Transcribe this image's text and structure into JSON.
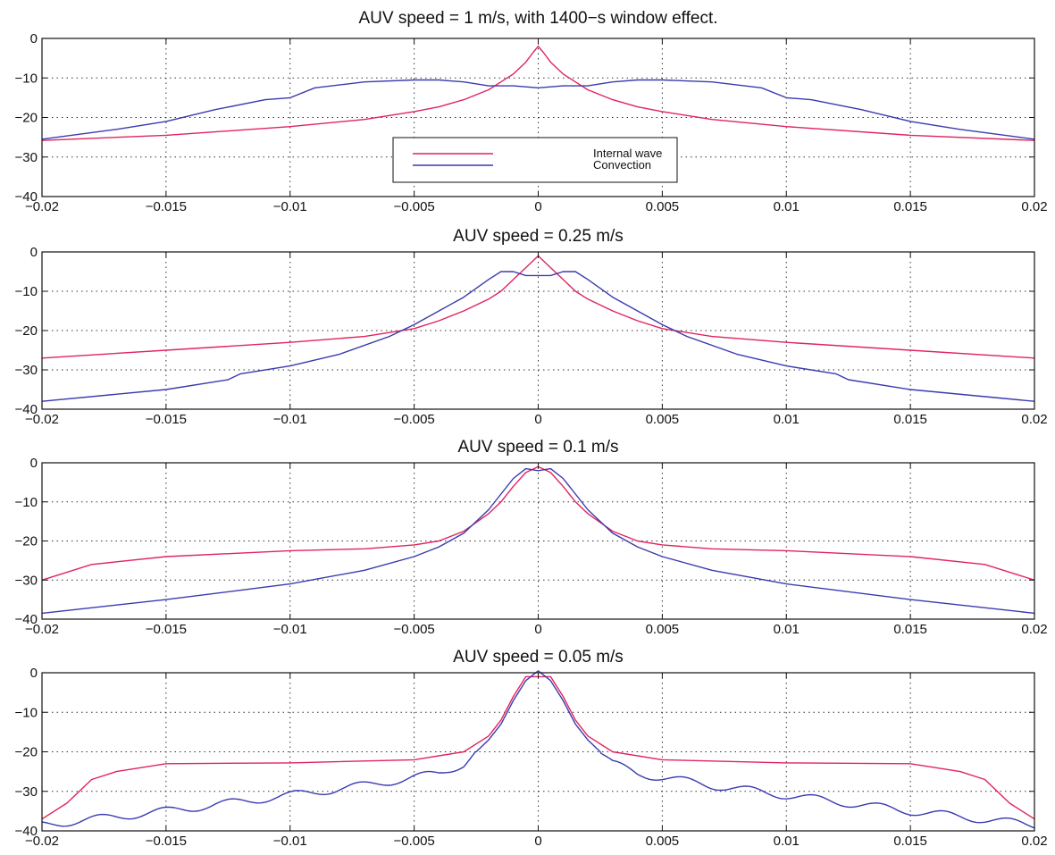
{
  "chart_data": [
    {
      "type": "line",
      "title": "AUV speed = 1 m/s, with 1400−s window effect.",
      "xlim": [
        -0.02,
        0.02
      ],
      "ylim": [
        -40,
        0
      ],
      "xticks": [
        "−0.02",
        "−0.015",
        "−0.01",
        "−0.005",
        "0",
        "0.005",
        "0.01",
        "0.015",
        "0.02"
      ],
      "yticks": [
        "0",
        "−10",
        "−20",
        "−30",
        "−40"
      ],
      "grid": true,
      "legend": {
        "placement": "center-bottom",
        "entries": [
          "Internal wave",
          "Convection"
        ]
      },
      "series": [
        {
          "name": "Internal wave",
          "color": "#e0245e",
          "points": [
            [
              -0.02,
              -25.8
            ],
            [
              -0.015,
              -24.5
            ],
            [
              -0.01,
              -22.3
            ],
            [
              -0.007,
              -20.5
            ],
            [
              -0.005,
              -18.5
            ],
            [
              -0.004,
              -17.3
            ],
            [
              -0.003,
              -15.5
            ],
            [
              -0.002,
              -13
            ],
            [
              -0.0015,
              -11
            ],
            [
              -0.001,
              -9
            ],
            [
              -0.0005,
              -6
            ],
            [
              -0.0002,
              -3.5
            ],
            [
              0,
              -2
            ],
            [
              0.0002,
              -3.5
            ],
            [
              0.0005,
              -6
            ],
            [
              0.001,
              -9
            ],
            [
              0.0015,
              -11
            ],
            [
              0.002,
              -13
            ],
            [
              0.003,
              -15.5
            ],
            [
              0.004,
              -17.3
            ],
            [
              0.005,
              -18.5
            ],
            [
              0.007,
              -20.5
            ],
            [
              0.01,
              -22.3
            ],
            [
              0.015,
              -24.5
            ],
            [
              0.02,
              -25.8
            ]
          ]
        },
        {
          "name": "Convection",
          "color": "#3a3ab0",
          "points": [
            [
              -0.02,
              -25.5
            ],
            [
              -0.017,
              -23
            ],
            [
              -0.015,
              -21
            ],
            [
              -0.013,
              -18
            ],
            [
              -0.011,
              -15.5
            ],
            [
              -0.01,
              -15
            ],
            [
              -0.009,
              -12.5
            ],
            [
              -0.007,
              -11
            ],
            [
              -0.005,
              -10.5
            ],
            [
              -0.004,
              -10.5
            ],
            [
              -0.003,
              -11
            ],
            [
              -0.002,
              -12
            ],
            [
              -0.001,
              -12
            ],
            [
              0,
              -12.5
            ],
            [
              0.001,
              -12
            ],
            [
              0.002,
              -12
            ],
            [
              0.003,
              -11
            ],
            [
              0.004,
              -10.5
            ],
            [
              0.005,
              -10.5
            ],
            [
              0.007,
              -11
            ],
            [
              0.009,
              -12.5
            ],
            [
              0.01,
              -15
            ],
            [
              0.011,
              -15.5
            ],
            [
              0.013,
              -18
            ],
            [
              0.015,
              -21
            ],
            [
              0.017,
              -23
            ],
            [
              0.02,
              -25.5
            ]
          ]
        }
      ]
    },
    {
      "type": "line",
      "title": "AUV speed = 0.25 m/s",
      "xlim": [
        -0.02,
        0.02
      ],
      "ylim": [
        -40,
        0
      ],
      "xticks": [
        "−0.02",
        "−0.015",
        "−0.01",
        "−0.005",
        "0",
        "0.005",
        "0.01",
        "0.015",
        "0.02"
      ],
      "yticks": [
        "0",
        "−10",
        "−20",
        "−30",
        "−40"
      ],
      "grid": true,
      "series": [
        {
          "name": "Internal wave",
          "color": "#e0245e",
          "points": [
            [
              -0.02,
              -27
            ],
            [
              -0.015,
              -25
            ],
            [
              -0.01,
              -23
            ],
            [
              -0.007,
              -21.5
            ],
            [
              -0.005,
              -19.5
            ],
            [
              -0.004,
              -17.5
            ],
            [
              -0.003,
              -15
            ],
            [
              -0.002,
              -12
            ],
            [
              -0.0015,
              -10
            ],
            [
              -0.001,
              -7
            ],
            [
              -0.0005,
              -4
            ],
            [
              0,
              -1
            ],
            [
              0.0005,
              -4
            ],
            [
              0.001,
              -7
            ],
            [
              0.0015,
              -10
            ],
            [
              0.002,
              -12
            ],
            [
              0.003,
              -15
            ],
            [
              0.004,
              -17.5
            ],
            [
              0.005,
              -19.5
            ],
            [
              0.007,
              -21.5
            ],
            [
              0.01,
              -23
            ],
            [
              0.015,
              -25
            ],
            [
              0.02,
              -27
            ]
          ]
        },
        {
          "name": "Convection",
          "color": "#3a3ab0",
          "points": [
            [
              -0.02,
              -38
            ],
            [
              -0.015,
              -35
            ],
            [
              -0.0125,
              -32.5
            ],
            [
              -0.012,
              -31
            ],
            [
              -0.01,
              -29
            ],
            [
              -0.008,
              -26
            ],
            [
              -0.006,
              -21.5
            ],
            [
              -0.005,
              -18.5
            ],
            [
              -0.004,
              -15
            ],
            [
              -0.003,
              -11.5
            ],
            [
              -0.002,
              -7
            ],
            [
              -0.0015,
              -5
            ],
            [
              -0.001,
              -5
            ],
            [
              -0.0005,
              -6
            ],
            [
              0,
              -6
            ],
            [
              0.0005,
              -6
            ],
            [
              0.001,
              -5
            ],
            [
              0.0015,
              -5
            ],
            [
              0.002,
              -7
            ],
            [
              0.003,
              -11.5
            ],
            [
              0.004,
              -15
            ],
            [
              0.005,
              -18.5
            ],
            [
              0.006,
              -21.5
            ],
            [
              0.008,
              -26
            ],
            [
              0.01,
              -29
            ],
            [
              0.012,
              -31
            ],
            [
              0.0125,
              -32.5
            ],
            [
              0.015,
              -35
            ],
            [
              0.02,
              -38
            ]
          ]
        }
      ]
    },
    {
      "type": "line",
      "title": "AUV speed = 0.1 m/s",
      "xlim": [
        -0.02,
        0.02
      ],
      "ylim": [
        -40,
        0
      ],
      "xticks": [
        "−0.02",
        "−0.015",
        "−0.01",
        "−0.005",
        "0",
        "0.005",
        "0.01",
        "0.015",
        "0.02"
      ],
      "yticks": [
        "0",
        "−10",
        "−20",
        "−30",
        "−40"
      ],
      "grid": true,
      "series": [
        {
          "name": "Internal wave",
          "color": "#e0245e",
          "points": [
            [
              -0.02,
              -30
            ],
            [
              -0.018,
              -26
            ],
            [
              -0.015,
              -24
            ],
            [
              -0.01,
              -22.5
            ],
            [
              -0.007,
              -22
            ],
            [
              -0.005,
              -21
            ],
            [
              -0.004,
              -20
            ],
            [
              -0.003,
              -17.5
            ],
            [
              -0.002,
              -13
            ],
            [
              -0.0015,
              -10
            ],
            [
              -0.001,
              -6
            ],
            [
              -0.0005,
              -2.5
            ],
            [
              0,
              -1
            ],
            [
              0.0005,
              -2.5
            ],
            [
              0.001,
              -6
            ],
            [
              0.0015,
              -10
            ],
            [
              0.002,
              -13
            ],
            [
              0.003,
              -17.5
            ],
            [
              0.004,
              -20
            ],
            [
              0.005,
              -21
            ],
            [
              0.007,
              -22
            ],
            [
              0.01,
              -22.5
            ],
            [
              0.015,
              -24
            ],
            [
              0.018,
              -26
            ],
            [
              0.02,
              -30
            ]
          ]
        },
        {
          "name": "Convection",
          "color": "#3a3ab0",
          "points": [
            [
              -0.02,
              -38.5
            ],
            [
              -0.015,
              -35
            ],
            [
              -0.01,
              -31
            ],
            [
              -0.007,
              -27.5
            ],
            [
              -0.005,
              -24
            ],
            [
              -0.004,
              -21.5
            ],
            [
              -0.003,
              -18
            ],
            [
              -0.002,
              -12
            ],
            [
              -0.0015,
              -8
            ],
            [
              -0.001,
              -4
            ],
            [
              -0.0005,
              -1.5
            ],
            [
              0,
              -2
            ],
            [
              0.0005,
              -1.5
            ],
            [
              0.001,
              -4
            ],
            [
              0.0015,
              -8
            ],
            [
              0.002,
              -12
            ],
            [
              0.003,
              -18
            ],
            [
              0.004,
              -21.5
            ],
            [
              0.005,
              -24
            ],
            [
              0.007,
              -27.5
            ],
            [
              0.01,
              -31
            ],
            [
              0.015,
              -35
            ],
            [
              0.02,
              -38.5
            ]
          ]
        }
      ]
    },
    {
      "type": "line",
      "title": "AUV speed = 0.05 m/s",
      "xlim": [
        -0.02,
        0.02
      ],
      "ylim": [
        -40,
        0
      ],
      "xticks": [
        "−0.02",
        "−0.015",
        "−0.01",
        "−0.005",
        "0",
        "0.005",
        "0.01",
        "0.015",
        "0.02"
      ],
      "yticks": [
        "0",
        "−10",
        "−20",
        "−30",
        "−40"
      ],
      "grid": true,
      "series": [
        {
          "name": "Internal wave",
          "color": "#e0245e",
          "points": [
            [
              -0.02,
              -37
            ],
            [
              -0.019,
              -33
            ],
            [
              -0.018,
              -27
            ],
            [
              -0.017,
              -25
            ],
            [
              -0.015,
              -23
            ],
            [
              -0.01,
              -22.8
            ],
            [
              -0.005,
              -22
            ],
            [
              -0.003,
              -20
            ],
            [
              -0.002,
              -16
            ],
            [
              -0.0015,
              -12
            ],
            [
              -0.001,
              -6
            ],
            [
              -0.0005,
              -1
            ],
            [
              0,
              -1
            ],
            [
              0.0005,
              -1
            ],
            [
              0.001,
              -6
            ],
            [
              0.0015,
              -12
            ],
            [
              0.002,
              -16
            ],
            [
              0.003,
              -20
            ],
            [
              0.005,
              -22
            ],
            [
              0.01,
              -22.8
            ],
            [
              0.015,
              -23
            ],
            [
              0.017,
              -25
            ],
            [
              0.018,
              -27
            ],
            [
              0.019,
              -33
            ],
            [
              0.02,
              -37
            ]
          ]
        },
        {
          "name": "Convection",
          "color": "#3a3ab0",
          "points": [
            [
              -0.02,
              -38.5
            ],
            [
              -0.015,
              -35
            ],
            [
              -0.01,
              -31
            ],
            [
              -0.007,
              -28.5
            ],
            [
              -0.005,
              -26.5
            ],
            [
              -0.004,
              -25.5
            ],
            [
              -0.003,
              -23
            ],
            [
              -0.002,
              -17
            ],
            [
              -0.0015,
              -13
            ],
            [
              -0.001,
              -7
            ],
            [
              -0.0005,
              -2
            ],
            [
              0,
              0.5
            ],
            [
              0.0005,
              -2
            ],
            [
              0.001,
              -7
            ],
            [
              0.0015,
              -13
            ],
            [
              0.002,
              -17
            ],
            [
              0.003,
              -23
            ],
            [
              0.004,
              -25.5
            ],
            [
              0.005,
              -26.5
            ],
            [
              0.007,
              -28.5
            ],
            [
              0.01,
              -31
            ],
            [
              0.015,
              -35
            ],
            [
              0.02,
              -38.5
            ]
          ],
          "ripple": true
        }
      ]
    }
  ]
}
